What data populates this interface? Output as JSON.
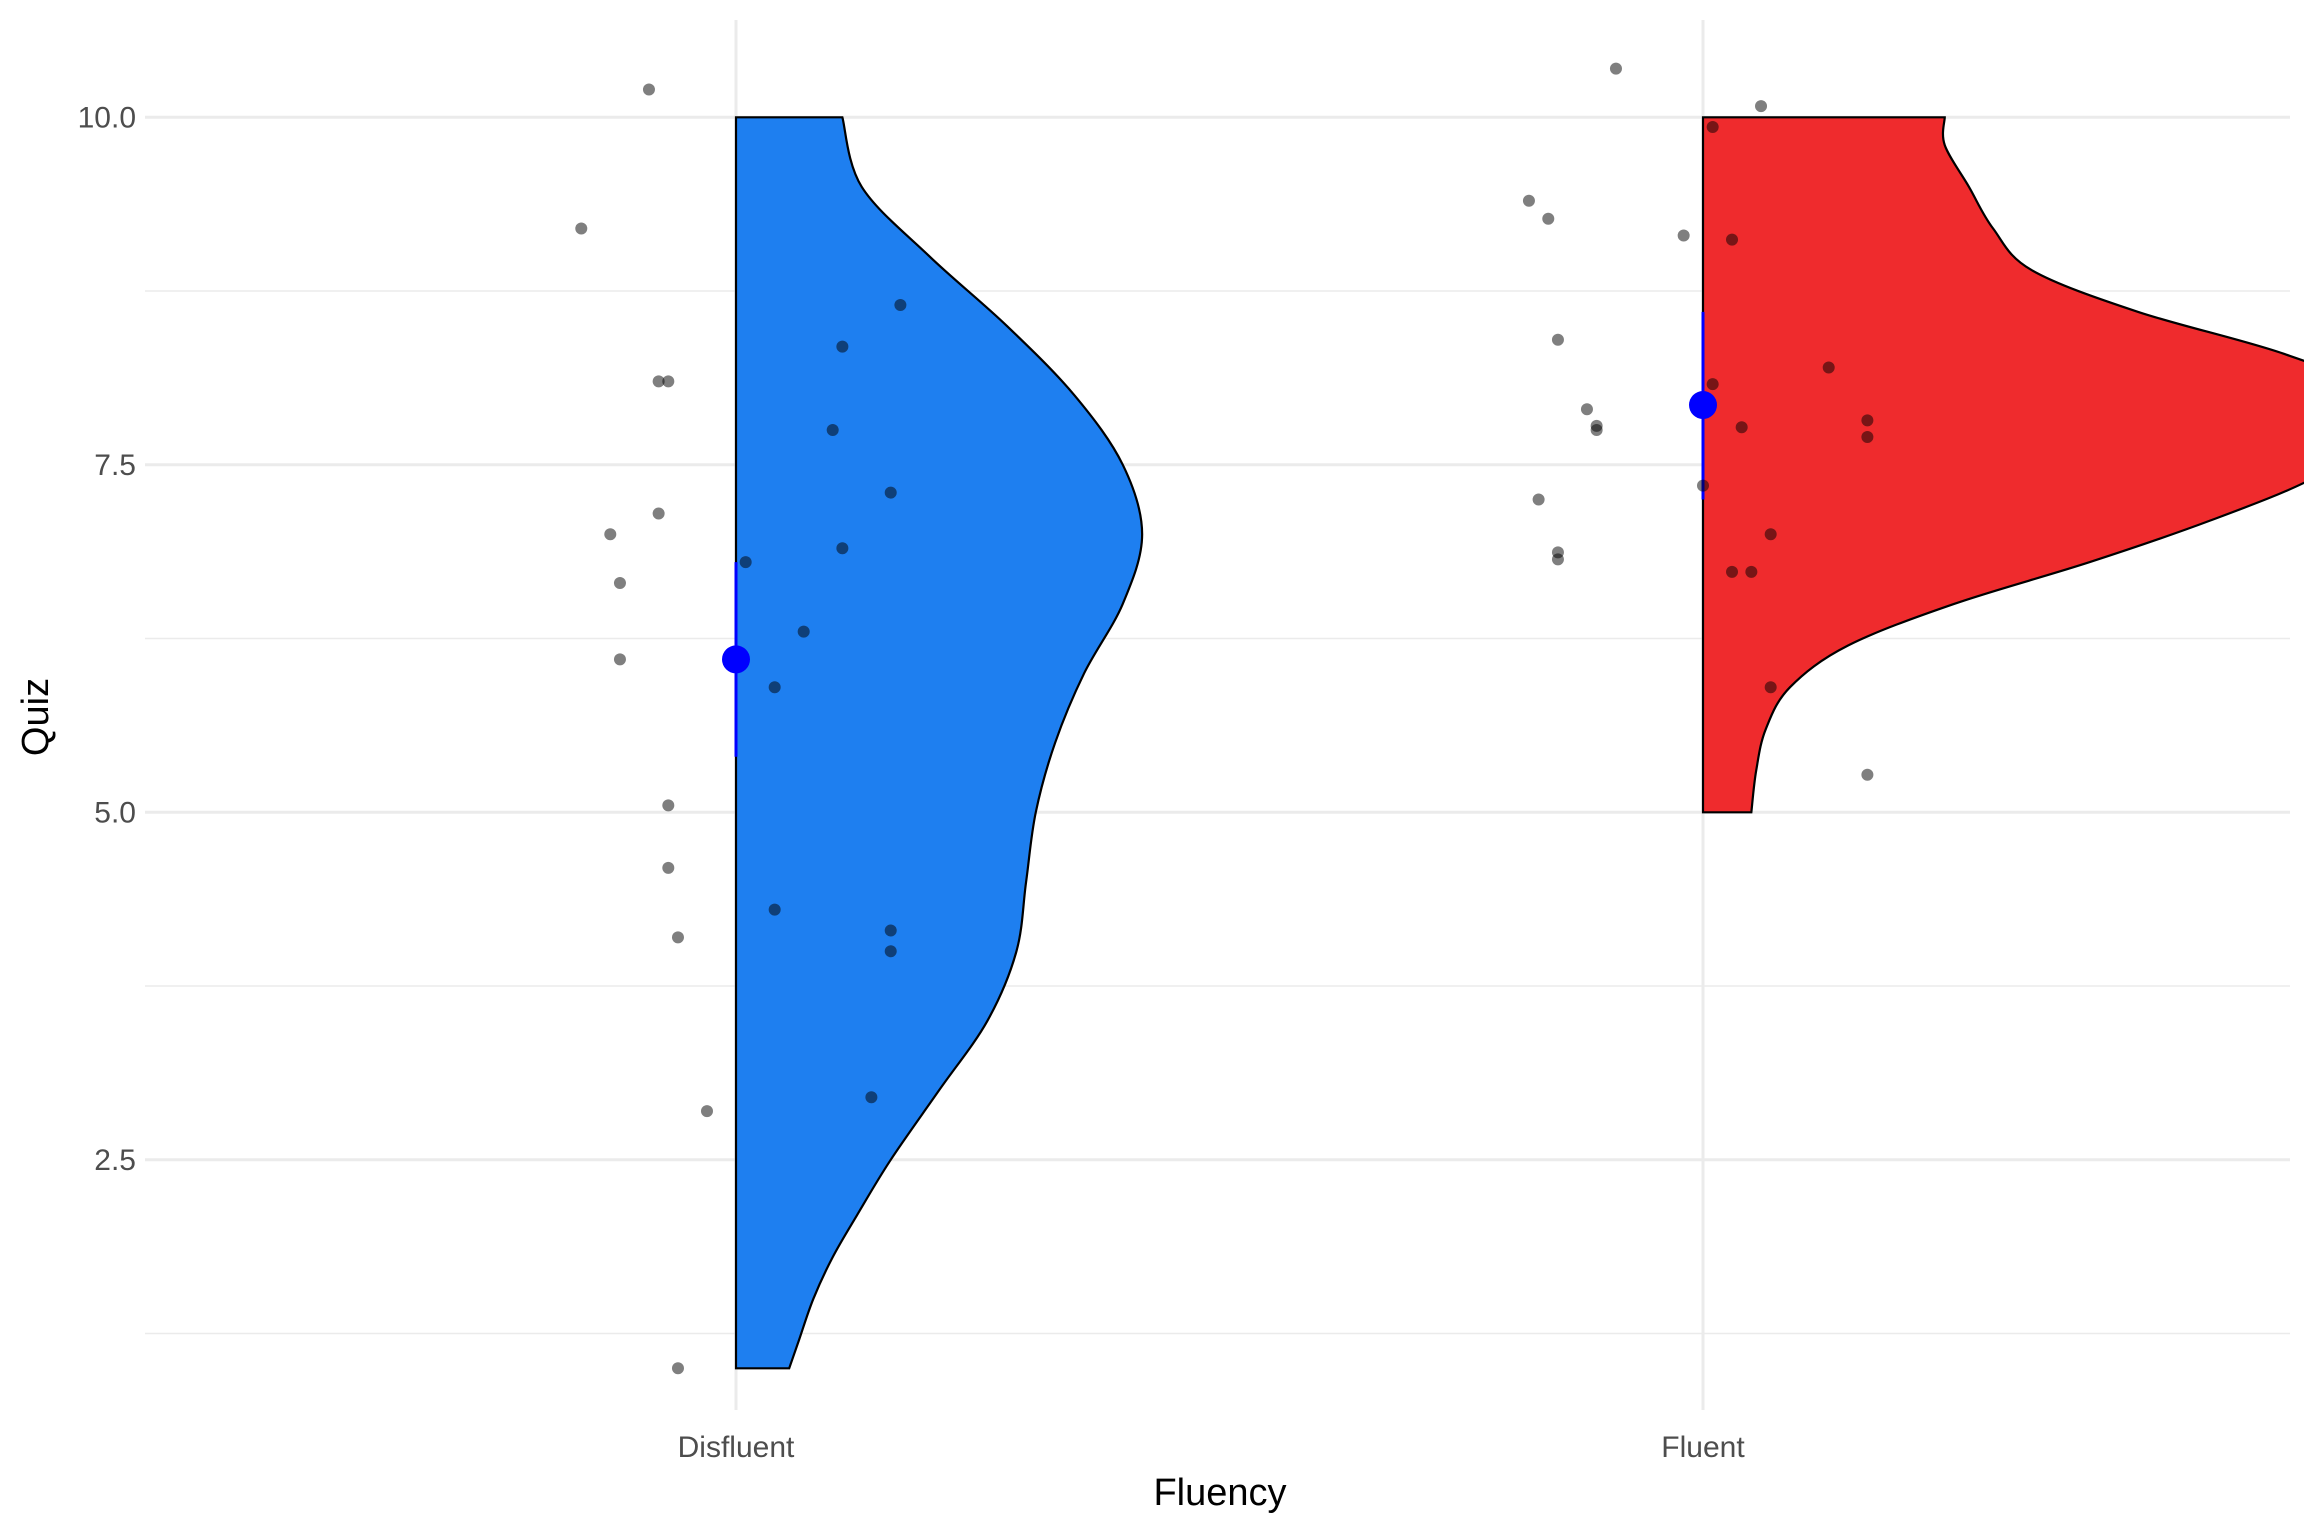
{
  "chart_data": {
    "type": "raincloud",
    "title": "",
    "xlabel": "Fluency",
    "ylabel": "Quiz",
    "categories": [
      "Disfluent",
      "Fluent"
    ],
    "ylim": [
      0.7,
      10.7
    ],
    "y_ticks": [
      2.5,
      5.0,
      7.5,
      10.0
    ],
    "y_tick_labels": [
      "2.5",
      "5.0",
      "7.5",
      "10.0"
    ],
    "grid": true,
    "legend": "none",
    "colors": {
      "Disfluent": "#1e7ff0",
      "Fluent": "#ef2b2d",
      "mean_point": "#0000ff",
      "jitter_point": "#000000",
      "grid": "#ebebeb"
    },
    "series": [
      {
        "category": "Disfluent",
        "mean": 6.1,
        "ci": [
          5.4,
          6.8
        ],
        "density": {
          "y": [
            1.0,
            1.2,
            1.5,
            1.8,
            2.1,
            2.5,
            3.0,
            3.5,
            4.0,
            4.5,
            5.0,
            5.5,
            6.0,
            6.5,
            7.0,
            7.5,
            8.0,
            8.5,
            9.0,
            9.5,
            10.0
          ],
          "width": [
            0.11,
            0.13,
            0.16,
            0.2,
            0.25,
            0.32,
            0.42,
            0.52,
            0.58,
            0.6,
            0.62,
            0.66,
            0.72,
            0.8,
            0.84,
            0.8,
            0.7,
            0.56,
            0.4,
            0.26,
            0.22
          ]
        },
        "points": [
          10.2,
          9.2,
          8.65,
          8.35,
          8.1,
          8.1,
          7.75,
          7.3,
          7.15,
          7.0,
          6.9,
          6.8,
          6.65,
          6.3,
          6.1,
          5.9,
          5.05,
          4.6,
          4.3,
          4.15,
          4.1,
          4.0,
          2.95,
          2.85,
          1.0
        ],
        "points_jitter": [
          -0.09,
          -0.16,
          0.17,
          0.11,
          -0.08,
          -0.07,
          0.1,
          0.16,
          -0.08,
          -0.13,
          0.11,
          0.01,
          -0.12,
          0.07,
          -0.12,
          0.04,
          -0.07,
          -0.07,
          0.04,
          0.16,
          -0.06,
          0.16,
          0.14,
          -0.03,
          -0.06
        ]
      },
      {
        "category": "Fluent",
        "mean": 7.93,
        "ci": [
          7.25,
          8.6
        ],
        "density": {
          "y": [
            5.0,
            5.3,
            5.6,
            5.9,
            6.2,
            6.5,
            6.8,
            7.1,
            7.4,
            7.7,
            8.0,
            8.3,
            8.6,
            8.9,
            9.2,
            9.5,
            9.8,
            10.0
          ],
          "width": [
            0.1,
            0.11,
            0.13,
            0.18,
            0.3,
            0.52,
            0.8,
            1.05,
            1.26,
            1.38,
            1.4,
            1.2,
            0.9,
            0.68,
            0.6,
            0.55,
            0.5,
            0.5
          ]
        },
        "points": [
          10.35,
          10.08,
          9.93,
          9.4,
          9.27,
          9.15,
          9.12,
          8.4,
          8.2,
          8.08,
          7.9,
          7.82,
          7.78,
          7.77,
          7.75,
          7.7,
          7.35,
          7.25,
          7.0,
          6.87,
          6.82,
          6.73,
          6.73,
          5.9,
          5.27
        ],
        "points_jitter": [
          -0.09,
          0.06,
          0.01,
          -0.18,
          -0.16,
          -0.02,
          0.03,
          -0.15,
          0.13,
          0.01,
          -0.12,
          0.17,
          -0.11,
          0.04,
          -0.11,
          0.17,
          0.0,
          -0.17,
          0.07,
          -0.15,
          -0.15,
          0.03,
          0.05,
          0.07,
          0.17
        ]
      }
    ]
  }
}
